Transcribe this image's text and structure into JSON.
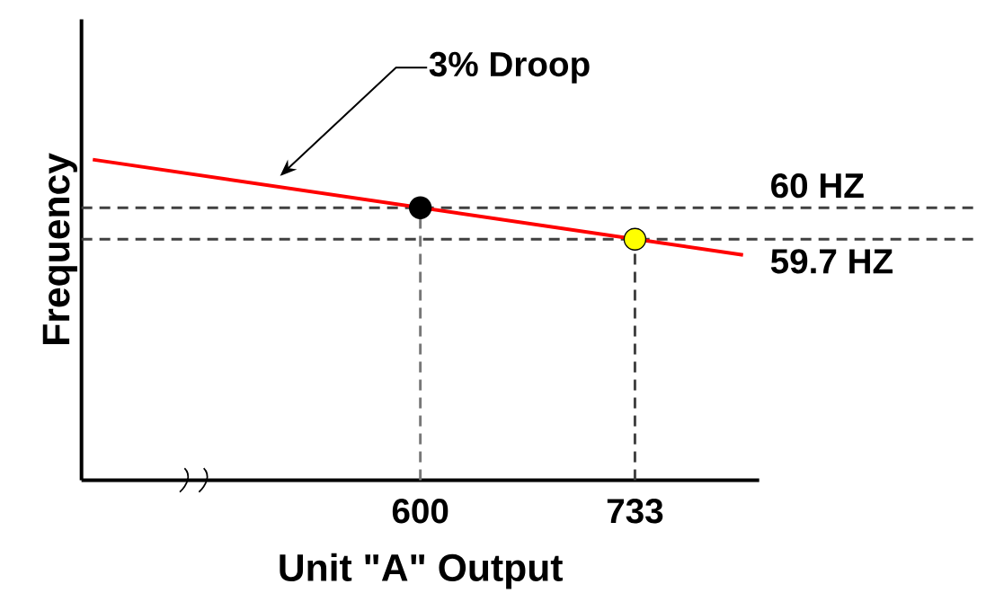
{
  "chart_data": {
    "type": "line",
    "xlabel": "Unit \"A\" Output",
    "ylabel": "Frequency",
    "xlim": [
      390,
      810
    ],
    "ylim": [
      57.4,
      61.8
    ],
    "xticks": [
      600,
      733
    ],
    "tick_labels": "x",
    "series": [
      {
        "color": "#ff0000",
        "x": [
          397,
          800
        ],
        "values": [
          60.46,
          59.55
        ],
        "marker": "none"
      },
      {
        "type": "scatter",
        "x": [
          600,
          733
        ],
        "values": [
          60,
          59.7
        ],
        "colors": [
          "#000000",
          "#ffff00"
        ],
        "marker": "circle"
      }
    ],
    "ref_lines": [
      {
        "axis": "y",
        "value": 60,
        "label": "60 HZ",
        "color": "#404040",
        "line_style": "dashed"
      },
      {
        "axis": "y",
        "value": 59.7,
        "label": "59.7 HZ",
        "color": "#404040",
        "line_style": "dashed"
      },
      {
        "axis": "x",
        "value": 600,
        "color": "#777777",
        "line_style": "dashed"
      },
      {
        "axis": "x",
        "value": 733,
        "color": "#404040",
        "line_style": "dashed"
      }
    ],
    "annotations": [
      "3% Droop"
    ]
  }
}
